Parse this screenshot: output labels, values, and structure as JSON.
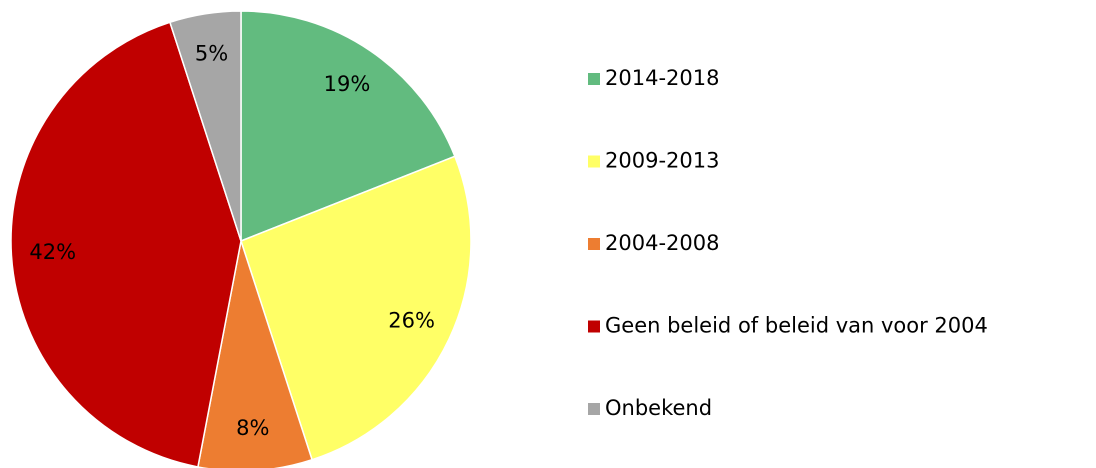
{
  "chart_data": {
    "type": "pie",
    "categories": [
      "2014-2018",
      "2009-2013",
      "2004-2008",
      "Geen beleid of beleid van voor 2004",
      "Onbekend"
    ],
    "values": [
      19,
      26,
      8,
      42,
      5
    ],
    "value_labels": [
      "19%",
      "26%",
      "8%",
      "42%",
      "5%"
    ],
    "colors": [
      "#62bb7f",
      "#ffff66",
      "#ed7d31",
      "#c00000",
      "#a6a6a6"
    ],
    "legend": "right"
  }
}
